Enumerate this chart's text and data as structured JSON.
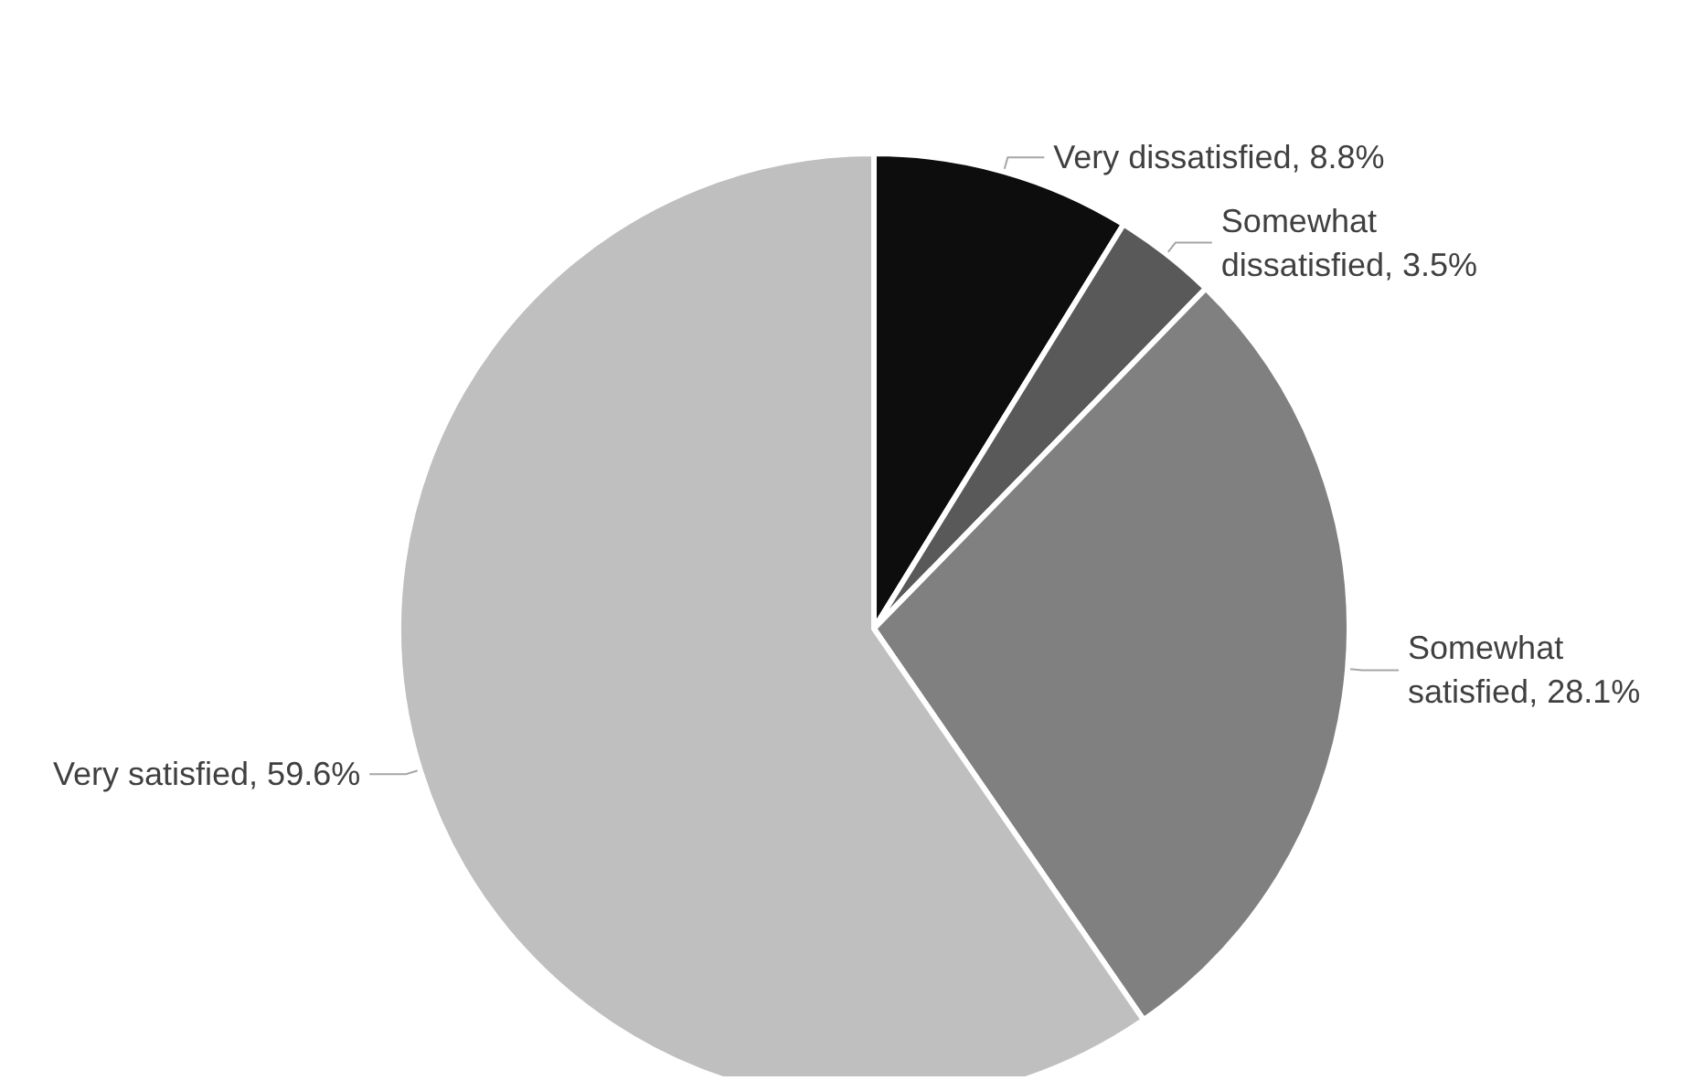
{
  "chart_data": {
    "type": "pie",
    "categories": [
      "Very dissatisfied",
      "Somewhat dissatisfied",
      "Somewhat satisfied",
      "Very satisfied"
    ],
    "values": [
      8.8,
      3.5,
      28.1,
      59.6
    ],
    "colors": [
      "#0d0d0d",
      "#595959",
      "#808080",
      "#bfbfbf"
    ],
    "value_labels": [
      "8.8%",
      "3.5%",
      "28.1%",
      "59.6%"
    ],
    "legend": false
  }
}
